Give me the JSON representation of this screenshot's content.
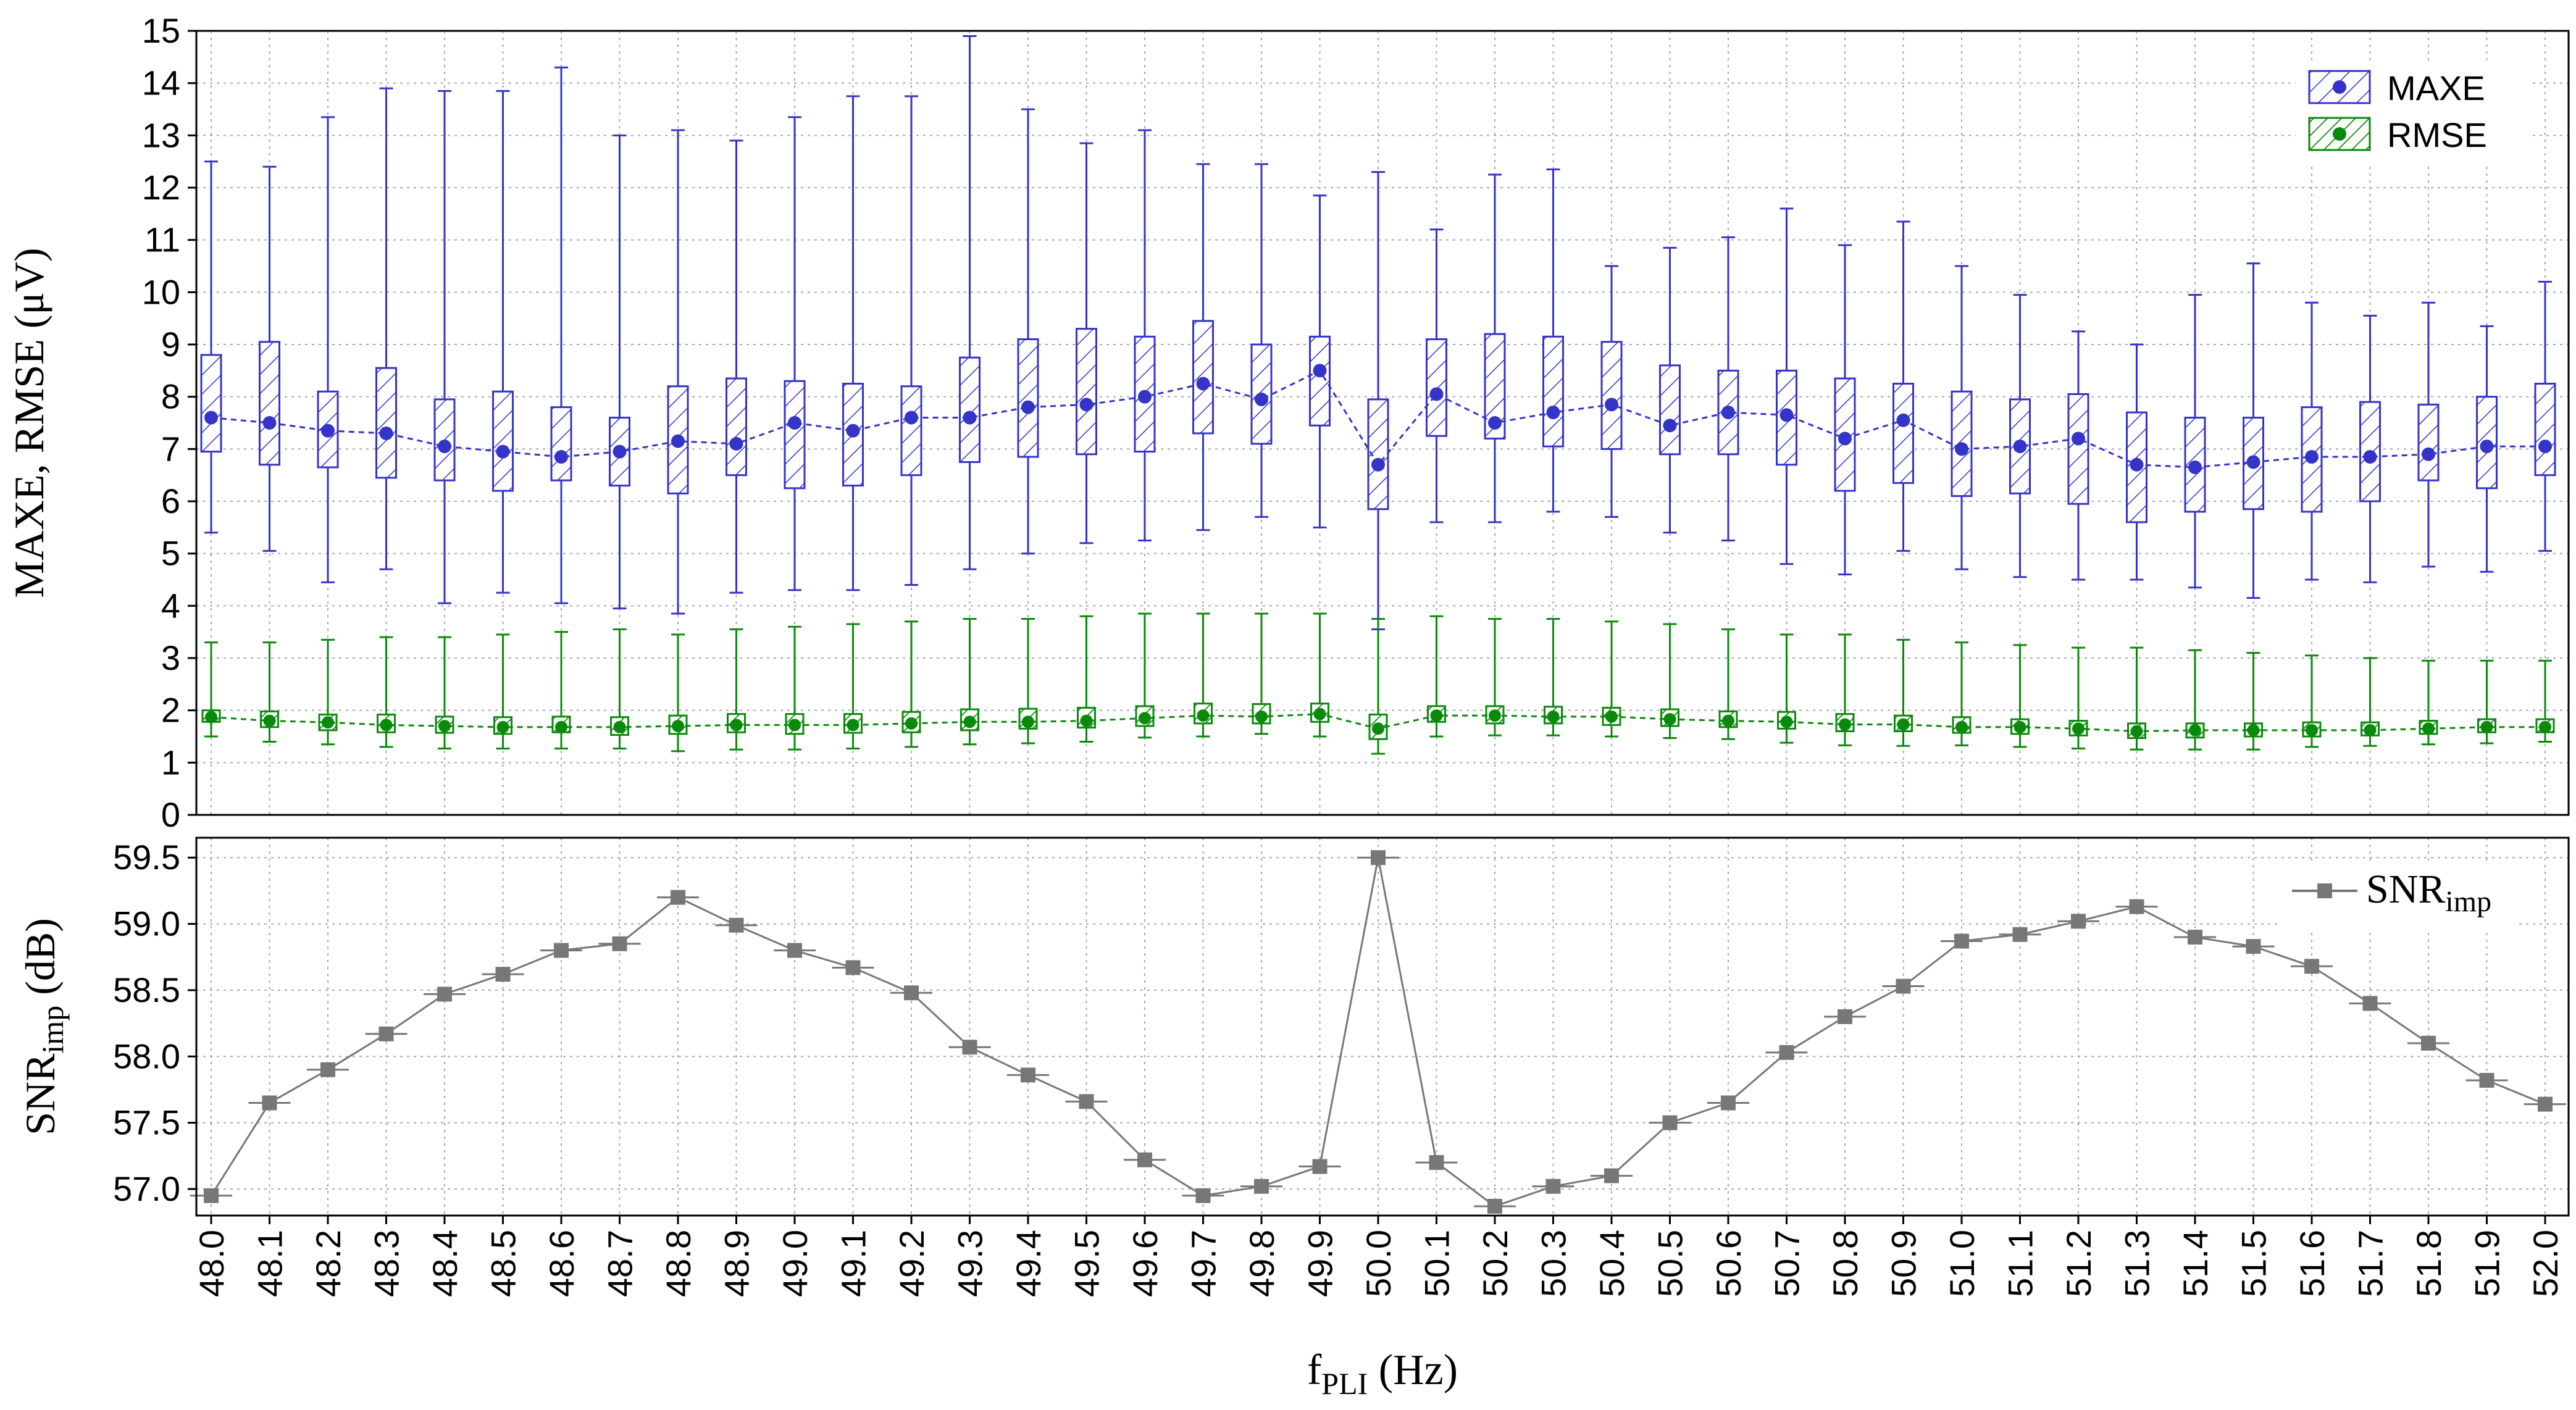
{
  "colors": {
    "maxe": "#3434c8",
    "rmse": "#0a8a0a",
    "snr": "#777777",
    "grid": "#a8a8a8",
    "axis": "#000000"
  },
  "x_tick_labels": [
    "48.0",
    "48.1",
    "48.2",
    "48.3",
    "48.4",
    "48.5",
    "48.6",
    "48.7",
    "48.8",
    "48.9",
    "49.0",
    "49.1",
    "49.2",
    "49.3",
    "49.4",
    "49.5",
    "49.6",
    "49.7",
    "49.8",
    "49.9",
    "50.0",
    "50.1",
    "50.2",
    "50.3",
    "50.4",
    "50.5",
    "50.6",
    "50.7",
    "50.8",
    "50.9",
    "51.0",
    "51.1",
    "51.2",
    "51.3",
    "51.4",
    "51.5",
    "51.6",
    "51.7",
    "51.8",
    "51.9",
    "52.0"
  ],
  "xlabel": {
    "main": "f",
    "sub": "PLI",
    "unit": " (Hz)"
  },
  "chart_data": [
    {
      "type": "box",
      "ylabel": "MAXE, RMSE (μV)",
      "ylim": [
        0,
        15
      ],
      "yticks": [
        "0",
        "1",
        "2",
        "3",
        "4",
        "5",
        "6",
        "7",
        "8",
        "9",
        "10",
        "11",
        "12",
        "13",
        "14",
        "15"
      ],
      "grid": true,
      "legend_position": "top-right",
      "categories": [
        "48.0",
        "48.1",
        "48.2",
        "48.3",
        "48.4",
        "48.5",
        "48.6",
        "48.7",
        "48.8",
        "48.9",
        "49.0",
        "49.1",
        "49.2",
        "49.3",
        "49.4",
        "49.5",
        "49.6",
        "49.7",
        "49.8",
        "49.9",
        "50.0",
        "50.1",
        "50.2",
        "50.3",
        "50.4",
        "50.5",
        "50.6",
        "50.7",
        "50.8",
        "50.9",
        "51.0",
        "51.1",
        "51.2",
        "51.3",
        "51.4",
        "51.5",
        "51.6",
        "51.7",
        "51.8",
        "51.9",
        "52.0"
      ],
      "series": [
        {
          "name": "MAXE",
          "median": [
            7.6,
            7.5,
            7.35,
            7.3,
            7.05,
            6.95,
            6.85,
            6.95,
            7.15,
            7.1,
            7.5,
            7.35,
            7.6,
            7.6,
            7.8,
            7.85,
            8.0,
            8.25,
            7.95,
            8.5,
            6.7,
            8.05,
            7.5,
            7.7,
            7.85,
            7.45,
            7.7,
            7.65,
            7.2,
            7.55,
            7.0,
            7.05,
            7.2,
            6.7,
            6.65,
            6.75,
            6.85,
            6.85,
            6.9,
            7.05,
            7.05
          ],
          "q1": [
            6.95,
            6.7,
            6.65,
            6.45,
            6.4,
            6.2,
            6.4,
            6.3,
            6.15,
            6.5,
            6.25,
            6.3,
            6.5,
            6.75,
            6.85,
            6.9,
            6.95,
            7.3,
            7.1,
            7.45,
            5.85,
            7.25,
            7.2,
            7.05,
            7.0,
            6.9,
            6.9,
            6.7,
            6.2,
            6.35,
            6.1,
            6.15,
            5.95,
            5.6,
            5.8,
            5.85,
            5.8,
            6.0,
            6.4,
            6.25,
            6.5
          ],
          "q3": [
            8.8,
            9.05,
            8.1,
            8.55,
            7.95,
            8.1,
            7.8,
            7.6,
            8.2,
            8.35,
            8.3,
            8.25,
            8.2,
            8.75,
            9.1,
            9.3,
            9.15,
            9.45,
            9.0,
            9.15,
            7.95,
            9.1,
            9.2,
            9.15,
            9.05,
            8.6,
            8.5,
            8.5,
            8.35,
            8.25,
            8.1,
            7.95,
            8.05,
            7.7,
            7.6,
            7.6,
            7.8,
            7.9,
            7.85,
            8.0,
            8.25
          ],
          "min": [
            5.4,
            5.05,
            4.45,
            4.7,
            4.05,
            4.25,
            4.05,
            3.95,
            3.85,
            4.25,
            4.3,
            4.3,
            4.4,
            4.7,
            5.0,
            5.2,
            5.25,
            5.45,
            5.7,
            5.5,
            3.55,
            5.6,
            5.6,
            5.8,
            5.7,
            5.4,
            5.25,
            4.8,
            4.6,
            5.05,
            4.7,
            4.55,
            4.5,
            4.5,
            4.35,
            4.15,
            4.5,
            4.45,
            4.75,
            4.65,
            5.05
          ],
          "max": [
            12.5,
            12.4,
            13.35,
            13.9,
            13.85,
            13.85,
            14.3,
            13.0,
            13.1,
            12.9,
            13.35,
            13.75,
            13.75,
            14.9,
            13.5,
            12.85,
            13.1,
            12.45,
            12.45,
            11.85,
            12.3,
            11.2,
            12.25,
            12.35,
            10.5,
            10.85,
            11.05,
            11.6,
            10.9,
            11.35,
            10.5,
            9.95,
            9.25,
            9.0,
            9.95,
            10.55,
            9.8,
            9.55,
            9.8,
            9.35,
            10.2
          ]
        },
        {
          "name": "RMSE",
          "median": [
            1.87,
            1.8,
            1.77,
            1.72,
            1.7,
            1.68,
            1.68,
            1.68,
            1.7,
            1.72,
            1.72,
            1.72,
            1.75,
            1.78,
            1.78,
            1.8,
            1.85,
            1.9,
            1.88,
            1.93,
            1.65,
            1.9,
            1.9,
            1.88,
            1.88,
            1.83,
            1.8,
            1.78,
            1.73,
            1.73,
            1.68,
            1.68,
            1.65,
            1.6,
            1.62,
            1.62,
            1.62,
            1.62,
            1.65,
            1.68,
            1.68
          ],
          "q1": [
            1.78,
            1.68,
            1.62,
            1.58,
            1.57,
            1.55,
            1.58,
            1.53,
            1.55,
            1.58,
            1.55,
            1.57,
            1.58,
            1.62,
            1.65,
            1.67,
            1.7,
            1.75,
            1.75,
            1.78,
            1.45,
            1.78,
            1.75,
            1.75,
            1.72,
            1.7,
            1.68,
            1.65,
            1.6,
            1.6,
            1.57,
            1.55,
            1.52,
            1.47,
            1.48,
            1.5,
            1.5,
            1.52,
            1.55,
            1.58,
            1.58
          ],
          "q3": [
            2.0,
            1.98,
            1.92,
            1.92,
            1.88,
            1.87,
            1.88,
            1.87,
            1.9,
            1.93,
            1.93,
            1.93,
            1.97,
            2.02,
            2.03,
            2.05,
            2.08,
            2.13,
            2.12,
            2.13,
            1.92,
            2.08,
            2.08,
            2.07,
            2.05,
            2.02,
            1.98,
            1.97,
            1.93,
            1.9,
            1.87,
            1.83,
            1.8,
            1.75,
            1.75,
            1.75,
            1.77,
            1.77,
            1.8,
            1.83,
            1.83
          ],
          "min": [
            1.5,
            1.4,
            1.35,
            1.3,
            1.27,
            1.27,
            1.27,
            1.27,
            1.22,
            1.25,
            1.25,
            1.27,
            1.3,
            1.35,
            1.37,
            1.4,
            1.48,
            1.5,
            1.55,
            1.5,
            1.17,
            1.5,
            1.52,
            1.52,
            1.5,
            1.47,
            1.45,
            1.38,
            1.33,
            1.32,
            1.33,
            1.3,
            1.27,
            1.25,
            1.25,
            1.25,
            1.3,
            1.32,
            1.35,
            1.37,
            1.4
          ],
          "max": [
            3.3,
            3.3,
            3.35,
            3.4,
            3.4,
            3.45,
            3.5,
            3.55,
            3.45,
            3.55,
            3.6,
            3.65,
            3.7,
            3.75,
            3.75,
            3.8,
            3.85,
            3.85,
            3.85,
            3.85,
            3.75,
            3.8,
            3.75,
            3.75,
            3.7,
            3.65,
            3.55,
            3.45,
            3.45,
            3.35,
            3.3,
            3.25,
            3.2,
            3.2,
            3.15,
            3.1,
            3.05,
            3.0,
            2.95,
            2.95,
            2.95
          ]
        }
      ]
    },
    {
      "type": "line",
      "ylabel": {
        "main": "SNR",
        "sub": "imp",
        "unit": " (dB)"
      },
      "ylim": [
        56.8,
        59.65
      ],
      "yticks": [
        "57.0",
        "57.5",
        "58.0",
        "58.5",
        "59.0",
        "59.5"
      ],
      "grid": true,
      "legend_position": "top-right",
      "categories": [
        "48.0",
        "48.1",
        "48.2",
        "48.3",
        "48.4",
        "48.5",
        "48.6",
        "48.7",
        "48.8",
        "48.9",
        "49.0",
        "49.1",
        "49.2",
        "49.3",
        "49.4",
        "49.5",
        "49.6",
        "49.7",
        "49.8",
        "49.9",
        "50.0",
        "50.1",
        "50.2",
        "50.3",
        "50.4",
        "50.5",
        "50.6",
        "50.7",
        "50.8",
        "50.9",
        "51.0",
        "51.1",
        "51.2",
        "51.3",
        "51.4",
        "51.5",
        "51.6",
        "51.7",
        "51.8",
        "51.9",
        "52.0"
      ],
      "series": [
        {
          "name": {
            "main": "SNR",
            "sub": "imp"
          },
          "values": [
            56.95,
            57.65,
            57.9,
            58.17,
            58.47,
            58.62,
            58.8,
            58.85,
            59.2,
            58.99,
            58.8,
            58.67,
            58.48,
            58.07,
            57.86,
            57.66,
            57.22,
            56.95,
            57.02,
            57.17,
            59.5,
            57.2,
            56.87,
            57.02,
            57.1,
            57.5,
            57.65,
            58.03,
            58.3,
            58.53,
            58.87,
            58.92,
            59.02,
            59.13,
            58.9,
            58.83,
            58.68,
            58.4,
            58.1,
            57.82,
            57.64
          ]
        }
      ]
    }
  ]
}
